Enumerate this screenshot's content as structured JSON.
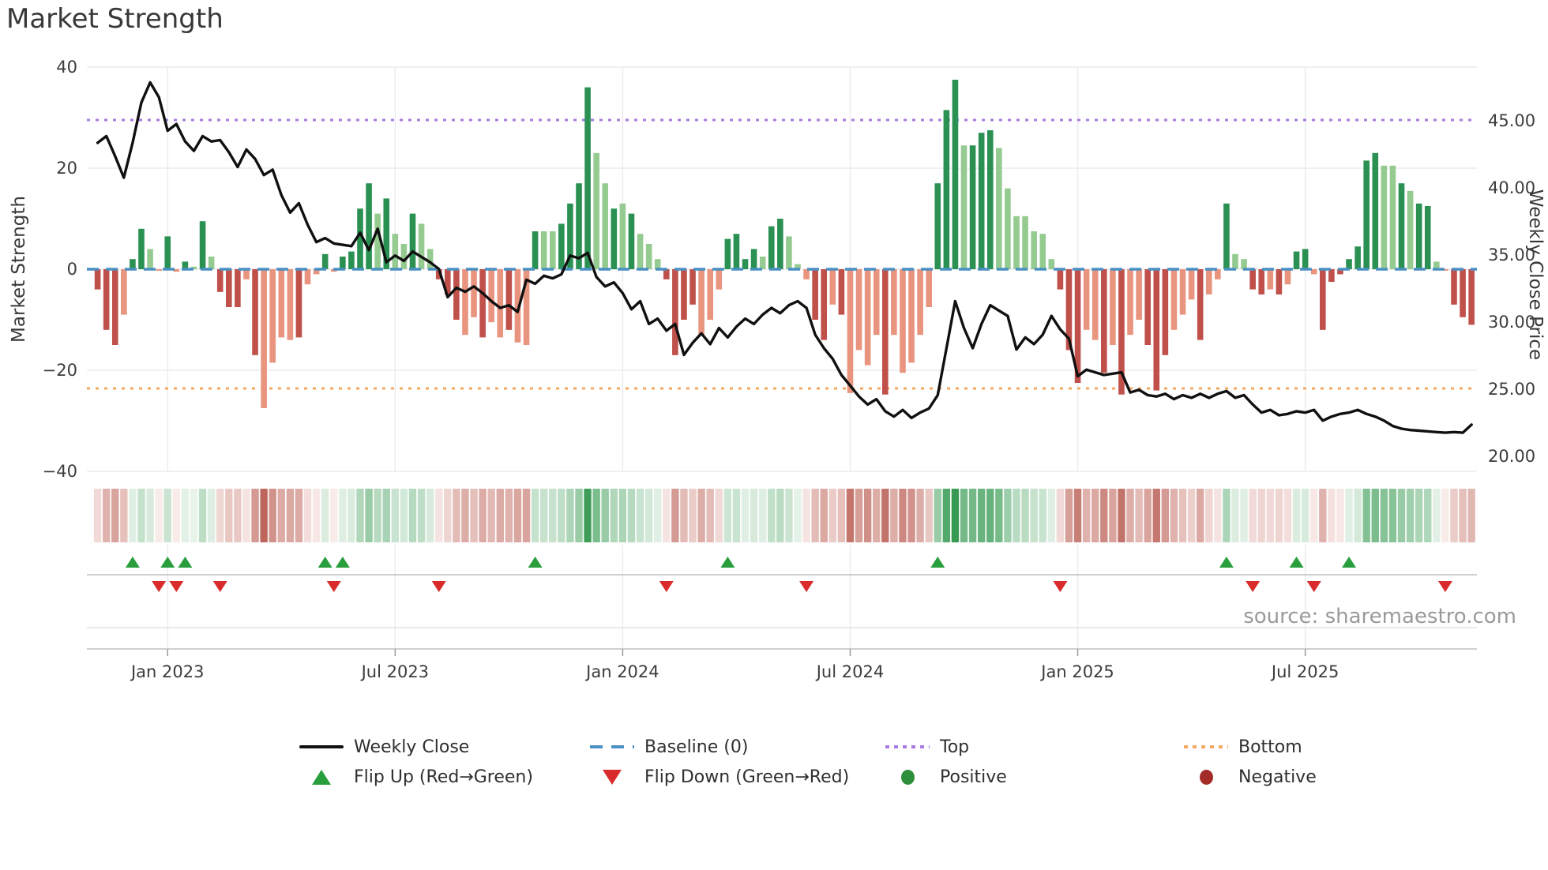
{
  "title": "Market Strength",
  "source_text": "source: sharemaestro.com",
  "chart_data": {
    "type": "bar",
    "subtype": "weekly-strength-bars-with-price-line-and-signal-heatmap",
    "title": "Market Strength",
    "left_axis": {
      "label": "Market Strength",
      "ticks": [
        40,
        20,
        0,
        -20,
        -40
      ],
      "range": [
        -40,
        40
      ]
    },
    "right_axis": {
      "label": "Weekly Close Price",
      "ticks": [
        {
          "v": 45,
          "label": "45.00"
        },
        {
          "v": 40,
          "label": "40.00"
        },
        {
          "v": 35,
          "label": "35.00"
        },
        {
          "v": 30,
          "label": "30.00"
        },
        {
          "v": 25,
          "label": "25.00"
        },
        {
          "v": 20,
          "label": "20.00"
        }
      ],
      "range": [
        19.5,
        48.9
      ]
    },
    "x_axis": {
      "ticks": [
        {
          "week": 8,
          "label": "Jan 2023"
        },
        {
          "week": 34,
          "label": "Jul 2023"
        },
        {
          "week": 60,
          "label": "Jan 2024"
        },
        {
          "week": 86,
          "label": "Jul 2024"
        },
        {
          "week": 112,
          "label": "Jan 2025"
        },
        {
          "week": 138,
          "label": "Jul 2025"
        }
      ]
    },
    "reference_lines": {
      "baseline_value": 0,
      "top_price": 45.0,
      "bottom_price": 25.0
    },
    "bars": {
      "values": [
        -4,
        -12,
        -15,
        -9,
        2,
        8,
        4,
        -0.3,
        6.5,
        -0.5,
        1.5,
        0.5,
        9.5,
        2.5,
        -4.5,
        -7.5,
        -7.5,
        -2,
        -17,
        -27.5,
        -18.5,
        -13.5,
        -14,
        -13.5,
        -3,
        -1,
        3,
        -0.5,
        2.5,
        3.5,
        12,
        17,
        11,
        14,
        7,
        5,
        11,
        9,
        4,
        -2,
        -5,
        -10,
        -13,
        -9.5,
        -13.5,
        -10.5,
        -13.5,
        -12,
        -14.5,
        -15,
        7.5,
        7.5,
        7.5,
        9,
        13,
        17,
        36,
        23,
        17,
        12,
        13,
        11,
        7,
        5,
        2,
        -2,
        -17,
        -10,
        -7,
        -13,
        -10,
        -4,
        6,
        7,
        2,
        4,
        2.5,
        8.5,
        10,
        6.5,
        1,
        -2,
        -10,
        -14,
        -7,
        -9,
        -24.5,
        -16,
        -19,
        -13,
        -24.8,
        -13,
        -20.5,
        -18.5,
        -13,
        -7.5,
        17,
        31.5,
        37.5,
        24.5,
        24.5,
        27,
        27.5,
        24,
        16,
        10.5,
        10.5,
        7.5,
        7,
        2,
        -4,
        -16,
        -22.5,
        -12,
        -14,
        -20.5,
        -15,
        -24.8,
        -13,
        -10,
        -15,
        -24,
        -17,
        -12,
        -9,
        -6,
        -14,
        -5,
        -2,
        13,
        3,
        2,
        -4,
        -5,
        -4,
        -5,
        -3,
        3.5,
        4,
        -1,
        -12,
        -2.5,
        -1,
        2,
        4.5,
        21.5,
        23,
        20.5,
        20.5,
        17,
        15.5,
        13,
        12.5,
        1.5,
        -0.3,
        -7,
        -9.5,
        -11
      ],
      "shades": "DDDLGGgLGLGgGgDDDLDLLLLDLLGLGGGGgGggGggDDDLLDLLDLLGggGGGGggGgGgggDDDDLLLGGGGgGGggLDDLDLLLLDLLLLLGGGgGGGgggggggDDDLLDLDLLDDDLLLDLLGggDDLDLGGLDDDGGGGggGgGGgLDDD"
    },
    "line_weekly_close_price": [
      43.3,
      43.8,
      42.3,
      40.7,
      43.3,
      46.3,
      47.8,
      46.7,
      44.2,
      44.7,
      43.4,
      42.7,
      43.8,
      43.4,
      43.5,
      42.6,
      41.5,
      42.8,
      42.1,
      40.9,
      41.3,
      39.4,
      38.1,
      38.8,
      37.2,
      35.9,
      36.2,
      35.8,
      35.7,
      35.6,
      36.6,
      35.3,
      36.9,
      34.4,
      34.9,
      34.5,
      35.2,
      34.8,
      34.4,
      33.9,
      31.8,
      32.5,
      32.2,
      32.6,
      32.1,
      31.5,
      31.0,
      31.2,
      30.7,
      33.1,
      32.8,
      33.4,
      33.2,
      33.5,
      34.9,
      34.7,
      35.1,
      33.3,
      32.6,
      32.9,
      32.1,
      30.9,
      31.5,
      29.8,
      30.2,
      29.3,
      29.8,
      27.5,
      28.4,
      29.1,
      28.3,
      29.5,
      28.8,
      29.6,
      30.2,
      29.8,
      30.5,
      31.0,
      30.6,
      31.2,
      31.5,
      31.0,
      29.0,
      28.0,
      27.2,
      26.0,
      25.2,
      24.4,
      23.8,
      24.2,
      23.3,
      22.9,
      23.4,
      22.8,
      23.2,
      23.5,
      24.5,
      28.0,
      31.5,
      29.5,
      28.0,
      29.8,
      31.2,
      30.8,
      30.4,
      27.9,
      28.8,
      28.3,
      29.0,
      30.4,
      29.4,
      28.7,
      25.9,
      26.4,
      26.2,
      26.0,
      26.1,
      26.2,
      24.7,
      24.9,
      24.5,
      24.4,
      24.6,
      24.2,
      24.5,
      24.3,
      24.6,
      24.3,
      24.6,
      24.8,
      24.3,
      24.5,
      23.8,
      23.2,
      23.4,
      23.0,
      23.1,
      23.3,
      23.2,
      23.4,
      22.6,
      22.9,
      23.1,
      23.2,
      23.4,
      23.1,
      22.9,
      22.6,
      22.2,
      22.0,
      21.9,
      21.85,
      21.8,
      21.75,
      21.7,
      21.75,
      21.7,
      22.3
    ],
    "flip_up_weeks": [
      4,
      8,
      10,
      26,
      28,
      50,
      72,
      96,
      129,
      137,
      143
    ],
    "flip_down_weeks": [
      7,
      9,
      14,
      27,
      39,
      65,
      81,
      110,
      132,
      139,
      154
    ],
    "colors": {
      "bar_dark_red": "#c0504a",
      "bar_light_red": "#e9947e",
      "bar_dark_green": "#2a9153",
      "bar_light_green": "#95cb90",
      "line": "#101010",
      "baseline": "#4a90c2",
      "top": "#a77be0",
      "bottom": "#f4a963",
      "flip_up": "#289e3d",
      "flip_down": "#d92b2b",
      "positive": "#2e8f3a",
      "negative": "#a32c28",
      "grid": "#ebebf1",
      "axis_line": "#c9c9c9",
      "tick_text": "#3c3c3c",
      "heat_green_min": "#eaf4ec",
      "heat_green_max": "#349951",
      "heat_red_min": "#f9edeb",
      "heat_red_max": "#a73326"
    }
  },
  "legend": {
    "row1": [
      {
        "label": "Weekly Close"
      },
      {
        "label": "Baseline (0)"
      },
      {
        "label": "Top"
      },
      {
        "label": "Bottom"
      }
    ],
    "row2": [
      {
        "label": "Flip Up (Red→Green)"
      },
      {
        "label": "Flip Down (Green→Red)"
      },
      {
        "label": "Positive"
      },
      {
        "label": "Negative"
      }
    ]
  }
}
